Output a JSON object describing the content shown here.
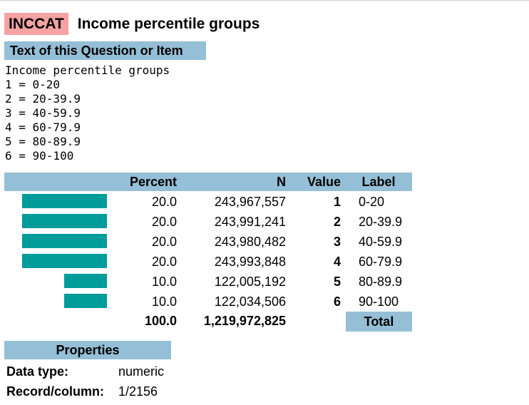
{
  "variable": {
    "name": "INCCAT",
    "title": "Income percentile groups"
  },
  "question": {
    "header": "Text of this Question or Item",
    "lines": [
      "Income percentile groups",
      "1 = 0-20",
      "2 = 20-39.9",
      "3 = 40-59.9",
      "4 = 60-79.9",
      "5 = 80-89.9",
      "6 = 90-100"
    ]
  },
  "frequency_table": {
    "columns": {
      "percent": "Percent",
      "n": "N",
      "value": "Value",
      "label": "Label"
    },
    "rows": [
      {
        "percent": "20.0",
        "n": "243,967,557",
        "value": "1",
        "label": "0-20"
      },
      {
        "percent": "20.0",
        "n": "243,991,241",
        "value": "2",
        "label": "20-39.9"
      },
      {
        "percent": "20.0",
        "n": "243,980,482",
        "value": "3",
        "label": "40-59.9"
      },
      {
        "percent": "20.0",
        "n": "243,993,848",
        "value": "4",
        "label": "60-79.9"
      },
      {
        "percent": "10.0",
        "n": "122,005,192",
        "value": "5",
        "label": "80-89.9"
      },
      {
        "percent": "10.0",
        "n": "122,034,506",
        "value": "6",
        "label": "90-100"
      }
    ],
    "total": {
      "percent": "100.0",
      "n": "1,219,972,825",
      "label": "Total"
    },
    "bar_color": "#009c99"
  },
  "properties": {
    "header": "Properties",
    "data_type_label": "Data type:",
    "data_type_value": "numeric",
    "record_label": "Record/column:",
    "record_value": "1/2156"
  },
  "colors": {
    "varname_bg": "#f4a3a2",
    "header_bg": "#95bfd6",
    "bar": "#009c99"
  }
}
